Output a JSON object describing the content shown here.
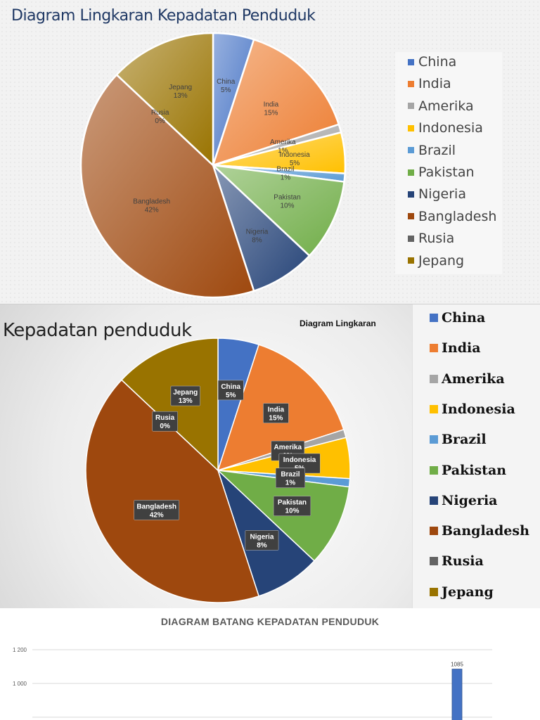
{
  "chart_data": [
    {
      "type": "pie",
      "title": "Diagram Lingkaran Kepadatan Penduduk",
      "legend_position": "right",
      "categories": [
        "China",
        "India",
        "Amerika",
        "Indonesia",
        "Brazil",
        "Pakistan",
        "Nigeria",
        "Bangladesh",
        "Rusia",
        "Jepang"
      ],
      "values": [
        5,
        15,
        1,
        5,
        1,
        10,
        8,
        42,
        0,
        13
      ],
      "data_labels": [
        "5%",
        "15%",
        "1%",
        "5%",
        "1%",
        "10%",
        "8%",
        "42%",
        "0%",
        "13%"
      ],
      "colors": [
        "#4472c4",
        "#ed7d31",
        "#a5a5a5",
        "#ffc000",
        "#5b9bd5",
        "#70ad47",
        "#264478",
        "#9e480e",
        "#636363",
        "#997300"
      ]
    },
    {
      "type": "pie",
      "title": "Kepadatan penduduk",
      "subtitle": "Diagram Lingkaran",
      "legend_position": "right",
      "categories": [
        "China",
        "India",
        "Amerika",
        "Indonesia",
        "Brazil",
        "Pakistan",
        "Nigeria",
        "Bangladesh",
        "Rusia",
        "Jepang"
      ],
      "values": [
        5,
        15,
        1,
        5,
        1,
        10,
        8,
        42,
        0,
        13
      ],
      "data_labels": [
        "5%",
        "15%",
        "1%",
        "5%",
        "1%",
        "10%",
        "8%",
        "42%",
        "0%",
        "13%"
      ],
      "colors": [
        "#4472c4",
        "#ed7d31",
        "#a5a5a5",
        "#ffc000",
        "#5b9bd5",
        "#70ad47",
        "#264478",
        "#9e480e",
        "#636363",
        "#997300"
      ]
    },
    {
      "type": "bar",
      "title": "DIAGRAM BATANG KEPADATAN PENDUDUK",
      "yticks": [
        "1200",
        "1000"
      ],
      "ylim_visible": [
        1000,
        1200
      ],
      "grid": true,
      "visible_bars": [
        {
          "value": 1085,
          "label": "1085"
        }
      ],
      "bar_color": "#4472c4"
    }
  ]
}
